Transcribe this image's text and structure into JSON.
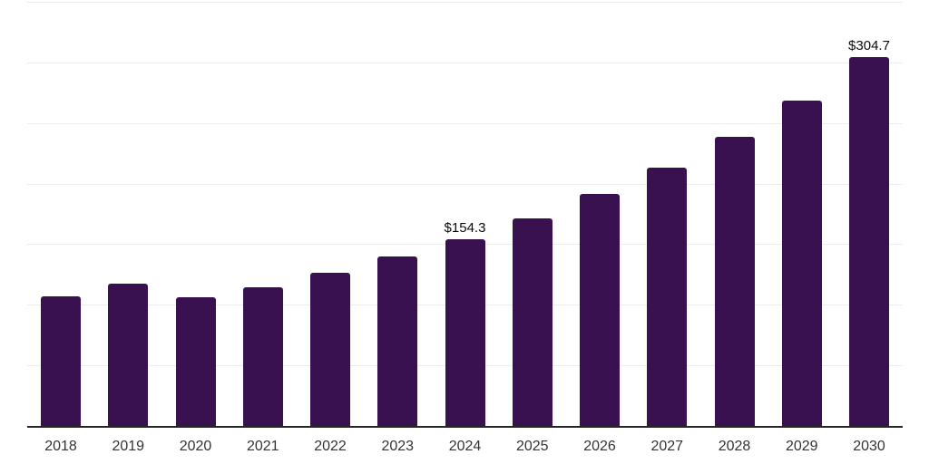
{
  "chart_data": {
    "type": "bar",
    "title": "",
    "xlabel": "",
    "ylabel": "",
    "categories": [
      "2018",
      "2019",
      "2020",
      "2021",
      "2022",
      "2023",
      "2024",
      "2025",
      "2026",
      "2027",
      "2028",
      "2029",
      "2030"
    ],
    "values": [
      106.7,
      117.2,
      106.0,
      114.6,
      126.1,
      139.9,
      154.3,
      171.6,
      191.8,
      213.4,
      238.8,
      268.7,
      304.7
    ],
    "data_labels": [
      {
        "category": "2024",
        "text": "$154.3"
      },
      {
        "category": "2030",
        "text": "$304.7"
      }
    ],
    "ylim": [
      0,
      350
    ],
    "gridline_step": 50,
    "grid": "horizontal-only",
    "legend": "none",
    "y_axis_labels_visible": false,
    "colors": {
      "bar": "#3A1150",
      "gridline": "#EDEDED",
      "axis": "#262626",
      "tick_label": "#333333",
      "data_label": "#0A0A0A",
      "background": "#FFFFFF"
    }
  }
}
